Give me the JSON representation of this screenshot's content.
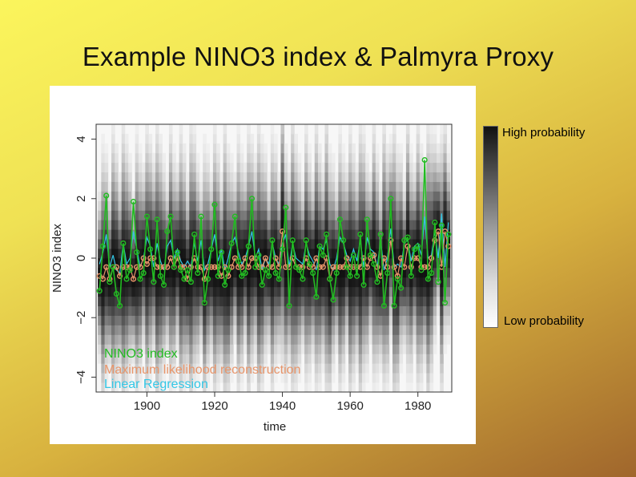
{
  "slide": {
    "title": "Example NINO3 index & Palmyra  Proxy"
  },
  "colorbar": {
    "high_label": "High probability",
    "low_label": "Low probability",
    "high_color": "#111111",
    "low_color": "#ffffff"
  },
  "chart_data": {
    "type": "line",
    "title": "",
    "xlabel": "time",
    "ylabel": "NINO3 index",
    "xlim": [
      1885,
      1990
    ],
    "ylim": [
      -4.5,
      4.5
    ],
    "xticks": [
      1900,
      1920,
      1940,
      1960,
      1980
    ],
    "yticks": [
      -4,
      -2,
      0,
      2,
      4
    ],
    "legend_position": "bottom-left",
    "legend": [
      "NINO3 index",
      "Maximum likelihood reconstruction",
      "Linear Regression"
    ],
    "colors": {
      "nino3": "#22bb22",
      "ml": "#e8956a",
      "lr": "#33c7e6"
    },
    "x": [
      1886,
      1887,
      1888,
      1889,
      1890,
      1891,
      1892,
      1893,
      1894,
      1895,
      1896,
      1897,
      1898,
      1899,
      1900,
      1901,
      1902,
      1903,
      1904,
      1905,
      1906,
      1907,
      1908,
      1909,
      1910,
      1911,
      1912,
      1913,
      1914,
      1915,
      1916,
      1917,
      1918,
      1919,
      1920,
      1921,
      1922,
      1923,
      1924,
      1925,
      1926,
      1927,
      1928,
      1929,
      1930,
      1931,
      1932,
      1933,
      1934,
      1935,
      1936,
      1937,
      1938,
      1939,
      1940,
      1941,
      1942,
      1943,
      1944,
      1945,
      1946,
      1947,
      1948,
      1949,
      1950,
      1951,
      1952,
      1953,
      1954,
      1955,
      1956,
      1957,
      1958,
      1959,
      1960,
      1961,
      1962,
      1963,
      1964,
      1965,
      1966,
      1967,
      1968,
      1969,
      1970,
      1971,
      1972,
      1973,
      1974,
      1975,
      1976,
      1977,
      1978,
      1979,
      1980,
      1981,
      1982,
      1983,
      1984,
      1985,
      1986,
      1987,
      1988,
      1989
    ],
    "series": [
      {
        "name": "NINO3 index",
        "values": [
          -1.1,
          0.4,
          2.1,
          -0.8,
          -0.3,
          -1.2,
          -1.6,
          0.5,
          -0.7,
          -0.4,
          1.9,
          0.2,
          -0.7,
          -0.5,
          1.4,
          0.3,
          -0.8,
          1.3,
          -0.6,
          -0.9,
          0.9,
          1.4,
          -0.3,
          0.2,
          -0.4,
          -0.7,
          -0.4,
          -0.8,
          0.8,
          -0.5,
          1.4,
          -1.5,
          -0.7,
          0.3,
          1.8,
          -0.6,
          0.2,
          -0.9,
          -0.4,
          0.5,
          1.4,
          -0.1,
          -0.6,
          -0.5,
          0.4,
          2.0,
          -0.3,
          0.1,
          -0.9,
          -0.4,
          -0.6,
          0.6,
          -0.5,
          -0.7,
          0.3,
          1.7,
          -1.6,
          0.6,
          -0.3,
          -0.4,
          -0.7,
          0.6,
          -0.2,
          -0.5,
          -1.3,
          0.4,
          0.1,
          0.8,
          -0.7,
          -1.4,
          -0.5,
          1.3,
          0.6,
          -0.3,
          -0.6,
          0.1,
          -0.6,
          0.8,
          -0.9,
          1.3,
          0.1,
          -0.2,
          -0.8,
          0.8,
          -1.6,
          -0.5,
          2.0,
          -1.6,
          -0.7,
          -1.0,
          0.6,
          0.7,
          -0.6,
          0.3,
          0.4,
          -0.4,
          3.3,
          -0.7,
          -0.5,
          1.2,
          -0.8,
          1.1,
          -1.5,
          0.8
        ]
      },
      {
        "name": "Maximum likelihood reconstruction",
        "values": [
          -0.6,
          -0.7,
          -0.3,
          -0.7,
          -0.3,
          -0.3,
          -0.6,
          -0.3,
          -0.3,
          -0.3,
          -0.7,
          -0.3,
          -0.3,
          0.0,
          -0.2,
          0.0,
          0.0,
          -0.3,
          -0.3,
          -0.3,
          -0.3,
          0.0,
          -0.3,
          0.0,
          -0.3,
          -0.3,
          -0.7,
          -0.3,
          0.0,
          -0.3,
          -0.3,
          -0.7,
          -0.3,
          -0.3,
          -0.3,
          -0.3,
          -0.6,
          -0.3,
          -0.6,
          -0.3,
          0.0,
          -0.3,
          -0.3,
          0.0,
          -0.3,
          0.0,
          0.0,
          -0.3,
          -0.3,
          0.0,
          -0.3,
          -0.3,
          0.0,
          -0.3,
          0.9,
          -0.3,
          -0.3,
          0.0,
          -0.3,
          -0.3,
          -0.3,
          0.0,
          -0.3,
          -0.3,
          0.0,
          -0.3,
          -0.3,
          0.0,
          -0.7,
          -0.3,
          -0.3,
          -0.3,
          -0.3,
          0.0,
          -0.3,
          -0.3,
          -0.3,
          -0.3,
          0.0,
          -0.3,
          0.0,
          0.1,
          -0.3,
          -0.6,
          0.0,
          -0.3,
          0.6,
          -0.3,
          -0.6,
          0.0,
          -0.3,
          0.4,
          -0.3,
          0.0,
          0.0,
          -0.3,
          -0.3,
          -0.3,
          0.0,
          0.6,
          0.9,
          -0.3,
          0.9,
          0.4
        ]
      },
      {
        "name": "Linear Regression",
        "values": [
          -0.2,
          0.2,
          0.8,
          -0.3,
          0.1,
          -0.4,
          -0.5,
          0.5,
          -0.2,
          0.0,
          0.9,
          0.3,
          -0.3,
          0.0,
          0.7,
          0.4,
          -0.3,
          0.5,
          -0.1,
          -0.4,
          0.4,
          0.6,
          0.0,
          0.3,
          -0.1,
          -0.3,
          -0.1,
          -0.3,
          0.5,
          -0.1,
          0.6,
          -0.4,
          -0.2,
          0.3,
          0.8,
          -0.1,
          0.3,
          -0.4,
          0.0,
          0.5,
          0.7,
          0.2,
          -0.2,
          0.0,
          0.4,
          0.9,
          0.0,
          0.3,
          -0.4,
          0.0,
          -0.2,
          0.5,
          0.0,
          -0.2,
          0.5,
          0.8,
          -0.3,
          0.5,
          0.0,
          -0.1,
          -0.2,
          0.5,
          0.1,
          -0.1,
          -0.4,
          0.4,
          0.3,
          0.6,
          -0.2,
          -0.4,
          0.0,
          0.7,
          0.5,
          0.1,
          -0.1,
          0.3,
          -0.1,
          0.6,
          -0.3,
          0.7,
          0.3,
          0.2,
          -0.3,
          0.6,
          -0.4,
          0.0,
          1.0,
          -0.3,
          -0.2,
          -0.3,
          0.5,
          0.6,
          -0.1,
          0.4,
          0.5,
          0.1,
          1.4,
          0.0,
          0.1,
          0.9,
          0.0,
          1.5,
          -0.3,
          1.2
        ]
      }
    ]
  }
}
